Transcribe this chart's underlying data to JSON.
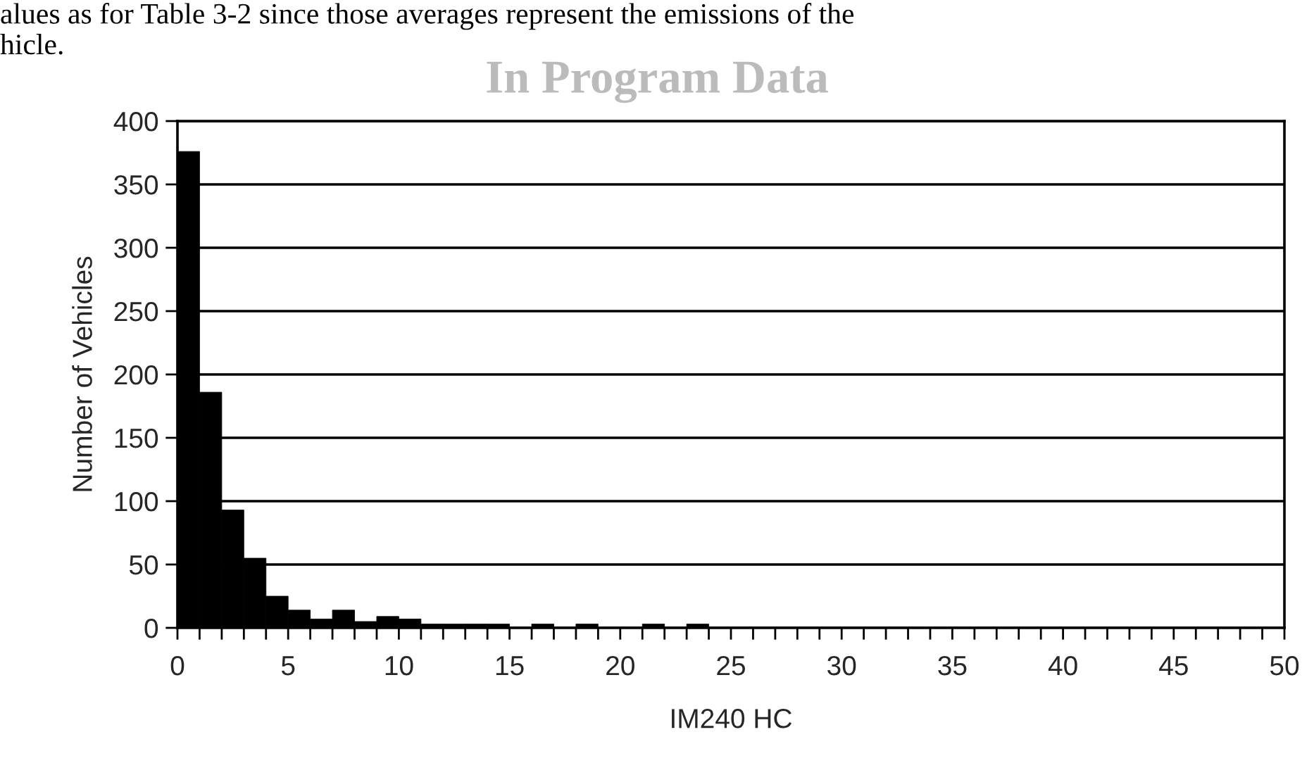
{
  "chart_data": {
    "type": "histogram",
    "title": "In Program Data",
    "xlabel": "IM240 HC",
    "ylabel": "Number of Vehicles",
    "annotations": [
      "alues as for Table 3-2 since those averages represent the emissions of the",
      "hicle."
    ],
    "bins": [
      0,
      1,
      2,
      3,
      4,
      5,
      6,
      7,
      8,
      9,
      10,
      11,
      12,
      13,
      14,
      15,
      16,
      17,
      18,
      19,
      20,
      21,
      22,
      23,
      24,
      25,
      26,
      27,
      28,
      29,
      30,
      31,
      32,
      33,
      34,
      35,
      36,
      37,
      38,
      39,
      40,
      41,
      42,
      43,
      44,
      45,
      46,
      47,
      48,
      49,
      50
    ],
    "values": [
      376,
      186,
      93,
      55,
      25,
      14,
      7,
      14,
      5,
      9,
      7,
      3,
      3,
      3,
      3,
      0,
      3,
      0,
      3,
      0,
      0,
      3,
      0,
      3,
      0,
      0,
      0,
      0,
      0,
      0,
      0,
      0,
      0,
      0,
      0,
      0,
      0,
      0,
      0,
      0,
      0,
      0,
      0,
      0,
      0,
      0,
      0,
      0,
      0,
      0
    ],
    "color": "#000000",
    "xlim": [
      0,
      50
    ],
    "ylim": [
      0,
      400
    ],
    "xticks": [
      0,
      {
        "value": 1,
        "label": null
      },
      {
        "value": 2,
        "label": null
      },
      {
        "value": 3,
        "label": null
      },
      {
        "value": 4,
        "label": null
      },
      5,
      {
        "value": 6,
        "label": null
      },
      {
        "value": 7,
        "label": null
      },
      {
        "value": 8,
        "label": null
      },
      {
        "value": 9,
        "label": null
      },
      10,
      {
        "value": 11,
        "label": null
      },
      {
        "value": 12,
        "label": null
      },
      {
        "value": 13,
        "label": null
      },
      {
        "value": 14,
        "label": null
      },
      15,
      {
        "value": 16,
        "label": null
      },
      {
        "value": 17,
        "label": null
      },
      {
        "value": 18,
        "label": null
      },
      {
        "value": 19,
        "label": null
      },
      20,
      {
        "value": 21,
        "label": null
      },
      {
        "value": 22,
        "label": null
      },
      {
        "value": 23,
        "label": null
      },
      {
        "value": 24,
        "label": null
      },
      25,
      {
        "value": 26,
        "label": null
      },
      {
        "value": 27,
        "label": null
      },
      {
        "value": 28,
        "label": null
      },
      {
        "value": 29,
        "label": null
      },
      30,
      {
        "value": 31,
        "label": null
      },
      {
        "value": 32,
        "label": null
      },
      {
        "value": 33,
        "label": null
      },
      {
        "value": 34,
        "label": null
      },
      35,
      {
        "value": 36,
        "label": null
      },
      {
        "value": 37,
        "label": null
      },
      {
        "value": 38,
        "label": null
      },
      {
        "value": 39,
        "label": null
      },
      40,
      {
        "value": 41,
        "label": null
      },
      {
        "value": 42,
        "label": null
      },
      {
        "value": 43,
        "label": null
      },
      {
        "value": 44,
        "label": null
      },
      45,
      {
        "value": 46,
        "label": null
      },
      {
        "value": 47,
        "label": null
      },
      {
        "value": 48,
        "label": null
      },
      {
        "value": 49,
        "label": null
      },
      50
    ],
    "yticks": [
      0,
      50,
      100,
      150,
      200,
      250,
      300,
      350,
      400
    ],
    "grid": "y"
  }
}
